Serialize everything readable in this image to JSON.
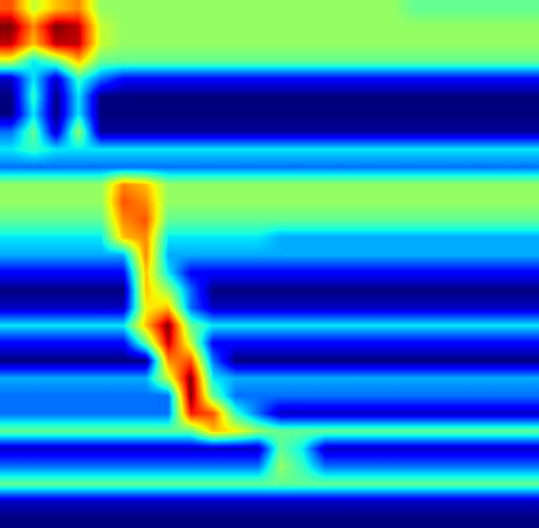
{
  "chart_data": {
    "type": "heatmap",
    "tick_labels": false,
    "cells": [
      [
        0.8,
        0.6,
        0.7,
        0.75,
        0.55,
        0.55,
        0.55,
        0.55,
        0.55,
        0.55,
        0.55,
        0.55,
        0.55,
        0.55,
        0.55,
        0.55,
        0.55,
        0.55,
        0.5,
        0.5,
        0.5,
        0.5,
        0.5,
        0.5
      ],
      [
        0.95,
        0.75,
        0.95,
        0.9,
        0.6,
        0.55,
        0.55,
        0.55,
        0.55,
        0.55,
        0.55,
        0.55,
        0.55,
        0.55,
        0.55,
        0.55,
        0.55,
        0.55,
        0.55,
        0.55,
        0.55,
        0.55,
        0.55,
        0.55
      ],
      [
        0.9,
        0.7,
        0.9,
        0.9,
        0.6,
        0.55,
        0.55,
        0.55,
        0.55,
        0.55,
        0.55,
        0.55,
        0.55,
        0.55,
        0.55,
        0.55,
        0.55,
        0.55,
        0.55,
        0.55,
        0.55,
        0.55,
        0.55,
        0.55
      ],
      [
        0.6,
        0.4,
        0.5,
        0.7,
        0.5,
        0.5,
        0.5,
        0.5,
        0.5,
        0.5,
        0.5,
        0.5,
        0.5,
        0.5,
        0.5,
        0.5,
        0.5,
        0.5,
        0.5,
        0.5,
        0.5,
        0.5,
        0.5,
        0.5
      ],
      [
        0.15,
        0.4,
        0.15,
        0.45,
        0.3,
        0.2,
        0.2,
        0.2,
        0.2,
        0.2,
        0.2,
        0.2,
        0.2,
        0.2,
        0.2,
        0.2,
        0.2,
        0.2,
        0.2,
        0.2,
        0.2,
        0.2,
        0.2,
        0.2
      ],
      [
        0.1,
        0.45,
        0.1,
        0.4,
        0.1,
        0.1,
        0.1,
        0.1,
        0.1,
        0.1,
        0.1,
        0.1,
        0.1,
        0.1,
        0.1,
        0.1,
        0.1,
        0.1,
        0.1,
        0.1,
        0.1,
        0.1,
        0.1,
        0.1
      ],
      [
        0.1,
        0.4,
        0.1,
        0.4,
        0.1,
        0.1,
        0.1,
        0.1,
        0.1,
        0.1,
        0.1,
        0.1,
        0.1,
        0.1,
        0.1,
        0.1,
        0.1,
        0.1,
        0.1,
        0.1,
        0.1,
        0.1,
        0.1,
        0.1
      ],
      [
        0.3,
        0.5,
        0.15,
        0.55,
        0.12,
        0.12,
        0.12,
        0.12,
        0.12,
        0.12,
        0.12,
        0.12,
        0.12,
        0.12,
        0.12,
        0.12,
        0.12,
        0.12,
        0.12,
        0.12,
        0.12,
        0.12,
        0.12,
        0.12
      ],
      [
        0.4,
        0.45,
        0.4,
        0.4,
        0.4,
        0.4,
        0.4,
        0.4,
        0.4,
        0.4,
        0.4,
        0.4,
        0.4,
        0.4,
        0.4,
        0.4,
        0.4,
        0.4,
        0.4,
        0.4,
        0.4,
        0.4,
        0.4,
        0.4
      ],
      [
        0.3,
        0.3,
        0.3,
        0.3,
        0.3,
        0.3,
        0.3,
        0.3,
        0.3,
        0.3,
        0.3,
        0.3,
        0.3,
        0.3,
        0.3,
        0.3,
        0.3,
        0.3,
        0.3,
        0.3,
        0.3,
        0.3,
        0.3,
        0.3
      ],
      [
        0.55,
        0.55,
        0.55,
        0.55,
        0.55,
        0.75,
        0.7,
        0.55,
        0.55,
        0.55,
        0.55,
        0.55,
        0.55,
        0.55,
        0.55,
        0.55,
        0.55,
        0.55,
        0.55,
        0.55,
        0.55,
        0.55,
        0.55,
        0.55
      ],
      [
        0.55,
        0.55,
        0.55,
        0.55,
        0.55,
        0.8,
        0.75,
        0.55,
        0.55,
        0.55,
        0.55,
        0.55,
        0.55,
        0.55,
        0.55,
        0.55,
        0.55,
        0.55,
        0.55,
        0.55,
        0.55,
        0.55,
        0.55,
        0.55
      ],
      [
        0.5,
        0.5,
        0.5,
        0.5,
        0.5,
        0.75,
        0.8,
        0.5,
        0.5,
        0.5,
        0.5,
        0.5,
        0.5,
        0.5,
        0.5,
        0.5,
        0.5,
        0.5,
        0.5,
        0.5,
        0.5,
        0.5,
        0.5,
        0.5
      ],
      [
        0.4,
        0.4,
        0.4,
        0.4,
        0.4,
        0.7,
        0.75,
        0.4,
        0.4,
        0.4,
        0.4,
        0.4,
        0.35,
        0.35,
        0.35,
        0.35,
        0.35,
        0.35,
        0.35,
        0.35,
        0.35,
        0.35,
        0.35,
        0.35
      ],
      [
        0.35,
        0.35,
        0.35,
        0.35,
        0.35,
        0.35,
        0.75,
        0.35,
        0.35,
        0.35,
        0.35,
        0.35,
        0.35,
        0.35,
        0.35,
        0.35,
        0.35,
        0.35,
        0.35,
        0.35,
        0.35,
        0.35,
        0.35,
        0.35
      ],
      [
        0.2,
        0.2,
        0.2,
        0.2,
        0.2,
        0.2,
        0.7,
        0.4,
        0.2,
        0.2,
        0.2,
        0.2,
        0.2,
        0.2,
        0.2,
        0.2,
        0.2,
        0.2,
        0.2,
        0.2,
        0.2,
        0.2,
        0.2,
        0.2
      ],
      [
        0.1,
        0.1,
        0.1,
        0.1,
        0.1,
        0.1,
        0.7,
        0.55,
        0.3,
        0.1,
        0.1,
        0.1,
        0.1,
        0.1,
        0.1,
        0.1,
        0.1,
        0.1,
        0.1,
        0.1,
        0.1,
        0.1,
        0.1,
        0.1
      ],
      [
        0.15,
        0.15,
        0.15,
        0.15,
        0.15,
        0.15,
        0.65,
        0.7,
        0.3,
        0.15,
        0.15,
        0.15,
        0.15,
        0.15,
        0.15,
        0.15,
        0.15,
        0.15,
        0.15,
        0.15,
        0.15,
        0.15,
        0.15,
        0.15
      ],
      [
        0.4,
        0.4,
        0.4,
        0.4,
        0.4,
        0.4,
        0.7,
        0.95,
        0.5,
        0.4,
        0.4,
        0.4,
        0.4,
        0.4,
        0.4,
        0.4,
        0.4,
        0.4,
        0.4,
        0.4,
        0.4,
        0.4,
        0.4,
        0.4
      ],
      [
        0.2,
        0.2,
        0.2,
        0.2,
        0.2,
        0.2,
        0.5,
        0.9,
        0.6,
        0.2,
        0.2,
        0.2,
        0.2,
        0.2,
        0.2,
        0.2,
        0.2,
        0.2,
        0.2,
        0.2,
        0.2,
        0.2,
        0.2,
        0.2
      ],
      [
        0.1,
        0.1,
        0.1,
        0.1,
        0.1,
        0.1,
        0.1,
        0.75,
        0.8,
        0.3,
        0.1,
        0.1,
        0.1,
        0.1,
        0.1,
        0.1,
        0.1,
        0.1,
        0.1,
        0.1,
        0.1,
        0.1,
        0.1,
        0.1
      ],
      [
        0.35,
        0.35,
        0.35,
        0.35,
        0.35,
        0.35,
        0.35,
        0.6,
        0.95,
        0.4,
        0.35,
        0.35,
        0.35,
        0.35,
        0.35,
        0.35,
        0.35,
        0.35,
        0.35,
        0.35,
        0.35,
        0.35,
        0.35,
        0.35
      ],
      [
        0.3,
        0.3,
        0.3,
        0.3,
        0.3,
        0.3,
        0.3,
        0.3,
        0.95,
        0.5,
        0.3,
        0.3,
        0.3,
        0.3,
        0.3,
        0.3,
        0.3,
        0.3,
        0.3,
        0.3,
        0.3,
        0.3,
        0.3,
        0.3
      ],
      [
        0.3,
        0.3,
        0.3,
        0.3,
        0.3,
        0.3,
        0.3,
        0.3,
        0.85,
        0.8,
        0.45,
        0.3,
        0.15,
        0.15,
        0.15,
        0.15,
        0.15,
        0.15,
        0.15,
        0.15,
        0.15,
        0.15,
        0.15,
        0.15
      ],
      [
        0.5,
        0.5,
        0.5,
        0.5,
        0.5,
        0.5,
        0.5,
        0.5,
        0.5,
        0.7,
        0.65,
        0.55,
        0.5,
        0.5,
        0.5,
        0.5,
        0.5,
        0.5,
        0.5,
        0.5,
        0.5,
        0.5,
        0.5,
        0.5
      ],
      [
        0.15,
        0.15,
        0.15,
        0.15,
        0.15,
        0.15,
        0.15,
        0.15,
        0.15,
        0.15,
        0.15,
        0.15,
        0.5,
        0.4,
        0.15,
        0.15,
        0.15,
        0.15,
        0.15,
        0.15,
        0.15,
        0.15,
        0.15,
        0.15
      ],
      [
        0.3,
        0.3,
        0.3,
        0.3,
        0.3,
        0.3,
        0.3,
        0.3,
        0.3,
        0.3,
        0.3,
        0.3,
        0.55,
        0.45,
        0.3,
        0.3,
        0.3,
        0.3,
        0.3,
        0.3,
        0.3,
        0.3,
        0.3,
        0.3
      ],
      [
        0.5,
        0.5,
        0.5,
        0.5,
        0.5,
        0.5,
        0.5,
        0.5,
        0.5,
        0.5,
        0.5,
        0.5,
        0.5,
        0.5,
        0.5,
        0.5,
        0.5,
        0.5,
        0.5,
        0.5,
        0.5,
        0.5,
        0.5,
        0.5
      ],
      [
        0.15,
        0.15,
        0.15,
        0.15,
        0.15,
        0.15,
        0.15,
        0.15,
        0.15,
        0.15,
        0.15,
        0.15,
        0.15,
        0.15,
        0.15,
        0.15,
        0.15,
        0.15,
        0.15,
        0.15,
        0.15,
        0.15,
        0.15,
        0.15
      ],
      [
        0.1,
        0.1,
        0.1,
        0.1,
        0.1,
        0.1,
        0.1,
        0.1,
        0.1,
        0.1,
        0.1,
        0.1,
        0.1,
        0.1,
        0.1,
        0.1,
        0.1,
        0.1,
        0.1,
        0.1,
        0.1,
        0.1,
        0.1,
        0.1
      ]
    ]
  }
}
